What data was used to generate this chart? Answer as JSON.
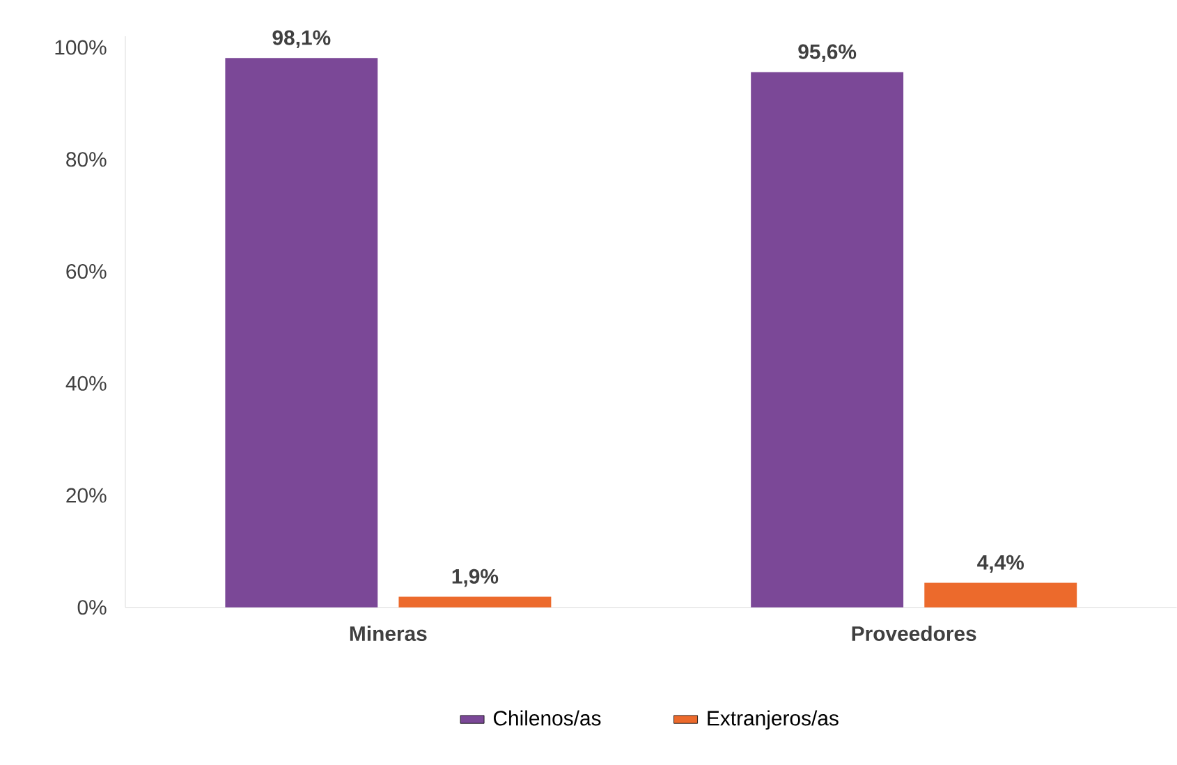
{
  "chart_data": {
    "type": "bar",
    "categories": [
      "Mineras",
      "Proveedores"
    ],
    "series": [
      {
        "name": "Chilenos/as",
        "color": "#7b4897",
        "values": [
          98.1,
          95.6
        ],
        "value_labels": [
          "98,1%",
          "95,6%"
        ]
      },
      {
        "name": "Extranjeros/as",
        "color": "#ec6a2c",
        "values": [
          1.9,
          4.4
        ],
        "value_labels": [
          "1,9%",
          "4,4%"
        ]
      }
    ],
    "ylim": [
      0,
      102
    ],
    "yticks": [
      {
        "value": 0,
        "label": "0%"
      },
      {
        "value": 20,
        "label": "20%"
      },
      {
        "value": 40,
        "label": "40%"
      },
      {
        "value": 60,
        "label": "60%"
      },
      {
        "value": 80,
        "label": "80%"
      },
      {
        "value": 100,
        "label": "100%"
      }
    ],
    "grid": false,
    "legend": "bottom"
  }
}
